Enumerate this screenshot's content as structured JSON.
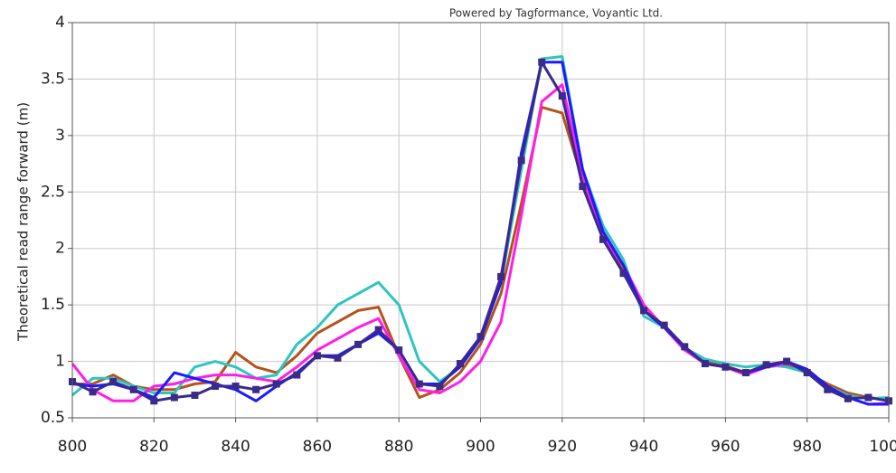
{
  "chart_data": {
    "type": "line",
    "title": "Powered by Tagformance, Voyantic Ltd.",
    "y_label": "Theoretical read range forward (m)",
    "x": [
      800,
      805,
      810,
      815,
      820,
      825,
      830,
      835,
      840,
      845,
      850,
      855,
      860,
      865,
      870,
      875,
      880,
      885,
      890,
      895,
      900,
      905,
      910,
      915,
      920,
      925,
      930,
      935,
      940,
      945,
      950,
      955,
      960,
      965,
      970,
      975,
      980,
      985,
      990,
      995,
      1000
    ],
    "xlim": [
      800,
      1000
    ],
    "xticks": [
      800,
      820,
      840,
      860,
      880,
      900,
      920,
      940,
      960,
      980,
      1000
    ],
    "ylim": [
      0.5,
      4
    ],
    "yticks": [
      0.5,
      1,
      1.5,
      2,
      2.5,
      3,
      3.5,
      4
    ],
    "grid": true,
    "series": [
      {
        "color": "#b5521b",
        "values": [
          0.8,
          0.8,
          0.88,
          0.78,
          0.75,
          0.75,
          0.8,
          0.82,
          1.08,
          0.95,
          0.9,
          1.05,
          1.25,
          1.35,
          1.45,
          1.48,
          1.05,
          0.68,
          0.75,
          0.9,
          1.15,
          1.6,
          2.4,
          3.25,
          3.2,
          2.6,
          2.1,
          1.8,
          1.45,
          1.3,
          1.1,
          1.0,
          0.96,
          0.9,
          0.95,
          0.97,
          0.9,
          0.8,
          0.72,
          0.68,
          0.66
        ]
      },
      {
        "color": "#2ec4c0",
        "values": [
          0.7,
          0.85,
          0.85,
          0.78,
          0.72,
          0.72,
          0.95,
          1.0,
          0.95,
          0.85,
          0.88,
          1.15,
          1.3,
          1.5,
          1.6,
          1.7,
          1.5,
          1.0,
          0.82,
          0.95,
          1.2,
          1.7,
          2.7,
          3.68,
          3.7,
          2.7,
          2.2,
          1.9,
          1.4,
          1.3,
          1.12,
          1.02,
          0.98,
          0.95,
          0.97,
          0.95,
          0.9,
          0.78,
          0.7,
          0.67,
          0.68
        ]
      },
      {
        "color": "#ff1ee6",
        "values": [
          0.98,
          0.75,
          0.65,
          0.65,
          0.78,
          0.8,
          0.85,
          0.88,
          0.88,
          0.85,
          0.82,
          0.95,
          1.1,
          1.2,
          1.3,
          1.38,
          1.05,
          0.75,
          0.72,
          0.82,
          1.0,
          1.35,
          2.3,
          3.3,
          3.45,
          2.65,
          2.1,
          1.85,
          1.5,
          1.3,
          1.1,
          0.98,
          0.95,
          0.88,
          0.95,
          0.98,
          0.92,
          0.78,
          0.68,
          0.62,
          0.63
        ]
      },
      {
        "color": "#1a1aff",
        "values": [
          0.8,
          0.78,
          0.8,
          0.75,
          0.68,
          0.9,
          0.85,
          0.8,
          0.75,
          0.65,
          0.78,
          0.9,
          1.05,
          1.05,
          1.15,
          1.25,
          1.1,
          0.8,
          0.8,
          0.95,
          1.2,
          1.7,
          2.85,
          3.65,
          3.65,
          2.7,
          2.15,
          1.85,
          1.45,
          1.3,
          1.12,
          0.98,
          0.95,
          0.9,
          0.95,
          1.0,
          0.93,
          0.78,
          0.68,
          0.62,
          0.62
        ]
      },
      {
        "color": "#3b2a8a",
        "marker": "square",
        "values": [
          0.82,
          0.73,
          0.82,
          0.75,
          0.65,
          0.68,
          0.7,
          0.78,
          0.78,
          0.75,
          0.8,
          0.88,
          1.05,
          1.03,
          1.15,
          1.28,
          1.1,
          0.8,
          0.78,
          0.98,
          1.22,
          1.75,
          2.78,
          3.65,
          3.35,
          2.55,
          2.08,
          1.78,
          1.45,
          1.32,
          1.13,
          0.98,
          0.95,
          0.9,
          0.97,
          1.0,
          0.9,
          0.75,
          0.67,
          0.68,
          0.65
        ]
      }
    ]
  }
}
